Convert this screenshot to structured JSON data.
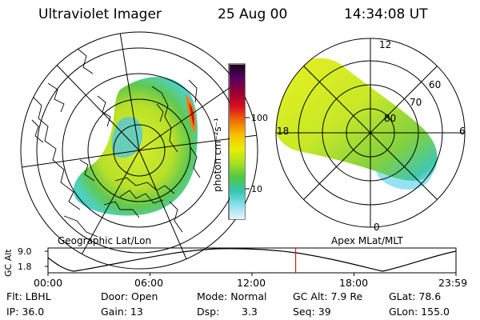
{
  "header": {
    "instrument": "Ultraviolet Imager",
    "date": "25 Aug 00",
    "time": "14:34:08 UT"
  },
  "left_map": {
    "label": "Geographic Lat/Lon"
  },
  "right_map": {
    "label": "Apex MLat/MLT",
    "mlt_labels": {
      "top": "12",
      "left": "18",
      "right": "6",
      "bottom": "0"
    },
    "lat_labels": [
      "60",
      "70",
      "80"
    ]
  },
  "colorbar": {
    "unit_label": "photon cm⁻²s⁻¹",
    "ticks": [
      "100",
      "10"
    ],
    "colors": [
      "#1a0020",
      "#5a0060",
      "#9a0030",
      "#d81020",
      "#f07000",
      "#f8c000",
      "#e8f000",
      "#a8e020",
      "#50c840",
      "#30c8b0",
      "#8ae0f0",
      "#e8f4f8"
    ]
  },
  "timeline": {
    "y_axis_label": "GC Alt",
    "y_ticks": [
      "9.0",
      "1.8"
    ],
    "x_ticks": [
      "00:00",
      "06:00",
      "12:00",
      "18:00",
      "23:59"
    ],
    "current_time_fraction": 0.607,
    "marker_color": "#cc2020"
  },
  "status": {
    "filter": "Flt: LBHL",
    "door": "Door: Open",
    "mode": "Mode: Normal",
    "gc_alt": "GC Alt: 7.9 Re",
    "glat": "GLat: 78.6",
    "ip": "IP: 36.0",
    "gain": "Gain: 13",
    "dsp_label": "Dsp:",
    "dsp_value": "3.3",
    "seq": "Seq: 39",
    "glon": "GLon: 155.0"
  }
}
